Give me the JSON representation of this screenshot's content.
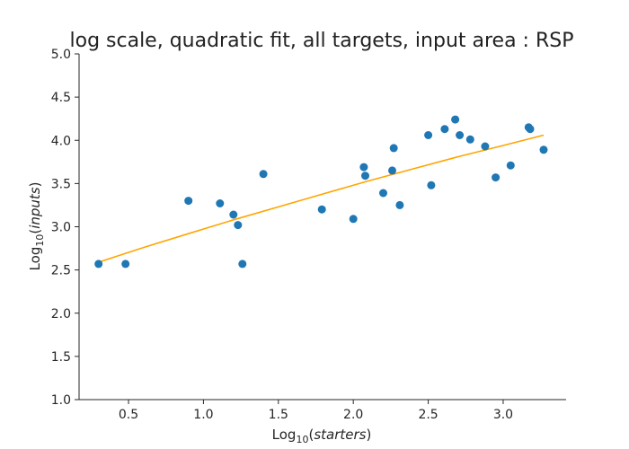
{
  "chart_data": {
    "type": "scatter",
    "title": "log scale, quadratic fit, all targets, input area : RSP",
    "xlabel": {
      "prefix": "Log",
      "sub": "10",
      "open": "(",
      "var": "starters",
      "close": ")"
    },
    "ylabel": {
      "prefix": "Log",
      "sub": "10",
      "open": "(",
      "var": "inputs",
      "close": ")"
    },
    "xlim": [
      0.17,
      3.42
    ],
    "ylim": [
      1.0,
      5.0
    ],
    "xticks": [
      0.5,
      1.0,
      1.5,
      2.0,
      2.5,
      3.0
    ],
    "xtick_labels": [
      "0.5",
      "1.0",
      "1.5",
      "2.0",
      "2.5",
      "3.0"
    ],
    "yticks": [
      1.0,
      1.5,
      2.0,
      2.5,
      3.0,
      3.5,
      4.0,
      4.5,
      5.0
    ],
    "ytick_labels": [
      "1.0",
      "1.5",
      "2.0",
      "2.5",
      "3.0",
      "3.5",
      "4.0",
      "4.5",
      "5.0"
    ],
    "grid": false,
    "points": [
      {
        "x": 0.3,
        "y": 2.57
      },
      {
        "x": 0.48,
        "y": 2.57
      },
      {
        "x": 0.9,
        "y": 3.3
      },
      {
        "x": 1.11,
        "y": 3.27
      },
      {
        "x": 1.2,
        "y": 3.14
      },
      {
        "x": 1.23,
        "y": 3.02
      },
      {
        "x": 1.26,
        "y": 2.57
      },
      {
        "x": 1.4,
        "y": 3.61
      },
      {
        "x": 1.79,
        "y": 3.2
      },
      {
        "x": 2.0,
        "y": 3.09
      },
      {
        "x": 2.07,
        "y": 3.69
      },
      {
        "x": 2.08,
        "y": 3.59
      },
      {
        "x": 2.2,
        "y": 3.39
      },
      {
        "x": 2.26,
        "y": 3.65
      },
      {
        "x": 2.27,
        "y": 3.91
      },
      {
        "x": 2.31,
        "y": 3.25
      },
      {
        "x": 2.5,
        "y": 4.06
      },
      {
        "x": 2.52,
        "y": 3.48
      },
      {
        "x": 2.61,
        "y": 4.13
      },
      {
        "x": 2.68,
        "y": 4.24
      },
      {
        "x": 2.71,
        "y": 4.06
      },
      {
        "x": 2.78,
        "y": 4.01
      },
      {
        "x": 2.88,
        "y": 3.93
      },
      {
        "x": 2.95,
        "y": 3.57
      },
      {
        "x": 3.05,
        "y": 3.71
      },
      {
        "x": 3.17,
        "y": 4.15
      },
      {
        "x": 3.18,
        "y": 4.13
      },
      {
        "x": 3.27,
        "y": 3.89
      }
    ],
    "fit_line": {
      "x": [
        0.3,
        0.6,
        0.9,
        1.2,
        1.5,
        1.8,
        2.1,
        2.4,
        2.7,
        3.0,
        3.27
      ],
      "y": [
        2.59,
        2.76,
        2.92,
        3.08,
        3.23,
        3.38,
        3.53,
        3.67,
        3.81,
        3.94,
        4.06
      ]
    },
    "colors": {
      "points": "#1f77b4",
      "fit": "#ffa500",
      "axes": "#262626"
    }
  }
}
